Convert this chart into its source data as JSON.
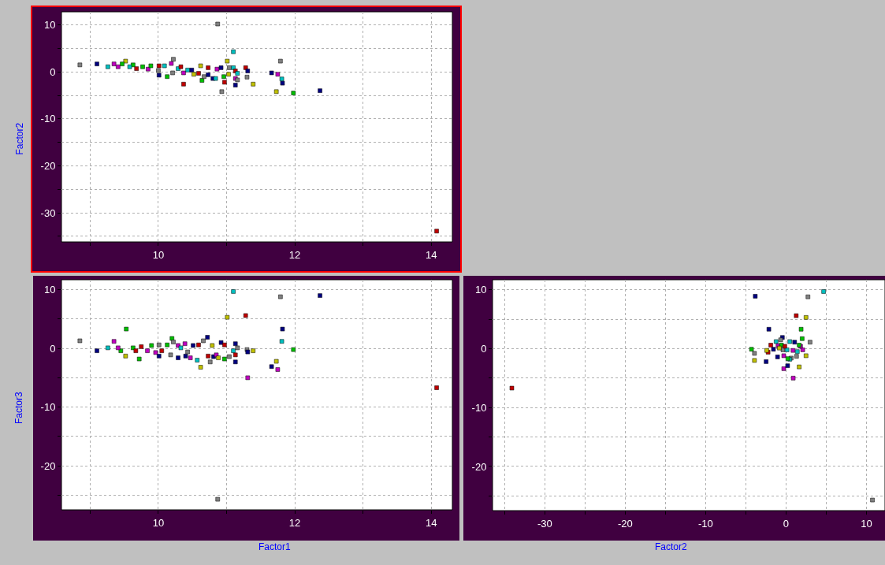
{
  "chart_data": [
    {
      "type": "scatter",
      "ylabel": "Factor2",
      "marker": "square",
      "grid": true,
      "xlim": [
        8.58,
        14.31
      ],
      "xticks": [
        {
          "value": 9,
          "label": null
        },
        10,
        {
          "value": 11,
          "label": null
        },
        12,
        {
          "value": 13,
          "label": null
        },
        14
      ],
      "ylim": [
        -36.2,
        12.8
      ],
      "yticks": [
        10,
        {
          "value": 5,
          "label": null
        },
        0,
        {
          "value": -5,
          "label": null
        },
        -10,
        {
          "value": -15,
          "label": null
        },
        -20,
        {
          "value": -25,
          "label": null
        },
        -30,
        {
          "value": -35,
          "label": null
        }
      ],
      "x": [
        8.85,
        9.1,
        9.26,
        9.35,
        9.41,
        9.52,
        9.47,
        9.63,
        9.58,
        9.68,
        9.77,
        9.85,
        9.89,
        10.01,
        10.0,
        10.01,
        10.09,
        10.13,
        10.19,
        10.22,
        10.21,
        10.29,
        10.33,
        10.37,
        10.37,
        10.43,
        10.49,
        10.52,
        10.62,
        10.59,
        10.64,
        10.67,
        10.73,
        10.73,
        10.86,
        10.8,
        10.84,
        10.87,
        10.92,
        10.93,
        10.97,
        10.96,
        11.01,
        11.03,
        11.04,
        11.1,
        11.1,
        11.13,
        11.13,
        11.13,
        11.16,
        11.16,
        11.28,
        11.31,
        11.3,
        11.39,
        11.66,
        11.75,
        11.79,
        11.81,
        11.82,
        11.73,
        11.98,
        12.37,
        14.08
      ],
      "values": [
        1.5,
        1.7,
        1.1,
        1.7,
        1.1,
        2.3,
        1.7,
        1.5,
        1.1,
        0.7,
        1.1,
        0.6,
        1.3,
        -0.7,
        0.3,
        1.3,
        1.3,
        -1.0,
        1.8,
        2.7,
        -0.2,
        0.7,
        1.1,
        -2.6,
        -0.2,
        0.4,
        0.4,
        -0.5,
        1.3,
        -0.3,
        -1.8,
        -1.0,
        0.9,
        -0.6,
        0.6,
        -1.4,
        -1.4,
        10.2,
        0.9,
        -4.2,
        -2.2,
        -1.0,
        2.3,
        -0.5,
        0.9,
        4.3,
        0.9,
        0.2,
        -1.4,
        -2.8,
        -0.3,
        -1.7,
        0.9,
        0.2,
        -1.1,
        -2.6,
        -0.2,
        -0.5,
        2.3,
        -1.5,
        -2.4,
        -4.2,
        -4.5,
        -4.0,
        -33.9
      ],
      "colors": [
        "#808080",
        "#000080",
        "#00c0c0",
        "#c000c0",
        "#c000c0",
        "#c0c000",
        "#00c000",
        "#00c000",
        "#00c0c0",
        "#c00000",
        "#00c000",
        "#c000c0",
        "#00c000",
        "#000080",
        "#808080",
        "#c00000",
        "#00c0c0",
        "#00c000",
        "#c000c0",
        "#808080",
        "#808080",
        "#00c0c0",
        "#c00000",
        "#c00000",
        "#c000c0",
        "#00c0c0",
        "#000080",
        "#c0c000",
        "#c0c000",
        "#c00000",
        "#00c000",
        "#808080",
        "#c00000",
        "#000080",
        "#c000c0",
        "#000080",
        "#00c0c0",
        "#808080",
        "#000080",
        "#808080",
        "#c00000",
        "#00c000",
        "#c0c000",
        "#c0c000",
        "#808080",
        "#00c0c0",
        "#00c0c0",
        "#c00000",
        "#c000c0",
        "#000080",
        "#00c0c0",
        "#808080",
        "#c00000",
        "#000080",
        "#808080",
        "#c0c000",
        "#000080",
        "#c000c0",
        "#808080",
        "#00c0c0",
        "#000080",
        "#c0c000",
        "#00c000",
        "#000080",
        "#c00000"
      ]
    },
    {
      "type": "scatter",
      "xlabel": "Factor1",
      "ylabel": "Factor3",
      "marker": "square",
      "grid": true,
      "xlim": [
        8.58,
        14.31
      ],
      "xticks": [
        {
          "value": 9,
          "label": null
        },
        10,
        {
          "value": 11,
          "label": null
        },
        12,
        {
          "value": 13,
          "label": null
        },
        14
      ],
      "ylim": [
        -27.5,
        11.7
      ],
      "yticks": [
        10,
        {
          "value": 5,
          "label": null
        },
        0,
        {
          "value": -5,
          "label": null
        },
        -10,
        {
          "value": -15,
          "label": null
        },
        -20,
        {
          "value": -25,
          "label": null
        }
      ],
      "x": [
        8.85,
        9.1,
        9.26,
        9.35,
        9.53,
        9.52,
        9.45,
        9.41,
        9.63,
        9.67,
        9.72,
        9.75,
        9.84,
        9.9,
        9.96,
        10.01,
        10.01,
        10.05,
        10.13,
        10.18,
        10.2,
        10.22,
        10.29,
        10.29,
        10.33,
        10.39,
        10.4,
        10.43,
        10.47,
        10.51,
        10.57,
        10.59,
        10.62,
        10.66,
        10.72,
        10.73,
        10.79,
        10.81,
        10.76,
        10.85,
        10.88,
        10.92,
        10.87,
        10.97,
        10.97,
        11.01,
        11.04,
        11.1,
        11.1,
        11.13,
        11.13,
        11.13,
        11.16,
        11.28,
        11.3,
        11.31,
        11.31,
        11.39,
        11.66,
        11.75,
        11.73,
        11.79,
        11.81,
        11.82,
        11.98,
        12.37,
        14.08
      ],
      "values": [
        1.3,
        -0.4,
        0.1,
        1.2,
        3.3,
        -1.3,
        -0.4,
        0.1,
        0.1,
        -0.4,
        -1.8,
        0.3,
        -0.4,
        0.5,
        -0.7,
        -1.3,
        0.6,
        -0.4,
        0.6,
        -1.1,
        1.7,
        1.1,
        0.5,
        -1.6,
        0.1,
        0.8,
        -1.3,
        -0.6,
        -1.6,
        0.5,
        -2.0,
        0.6,
        -3.2,
        1.3,
        1.9,
        -1.3,
        0.5,
        -1.4,
        -2.3,
        -1.1,
        -1.6,
        1.0,
        -25.7,
        0.6,
        -1.8,
        5.3,
        -1.4,
        9.7,
        -0.4,
        0.8,
        -1.1,
        -2.3,
        0.1,
        5.6,
        -0.2,
        -0.6,
        -5.0,
        -0.4,
        -3.1,
        -3.6,
        -2.2,
        8.8,
        1.2,
        3.3,
        -0.2,
        9.0,
        -6.7
      ],
      "colors": [
        "#808080",
        "#000080",
        "#00c0c0",
        "#c000c0",
        "#00c000",
        "#c0c000",
        "#00c000",
        "#c000c0",
        "#00c000",
        "#c00000",
        "#00c000",
        "#c00000",
        "#c000c0",
        "#00c000",
        "#c000c0",
        "#000080",
        "#808080",
        "#c00000",
        "#00c000",
        "#808080",
        "#00c000",
        "#808080",
        "#c000c0",
        "#000080",
        "#00c0c0",
        "#c000c0",
        "#000080",
        "#808080",
        "#c000c0",
        "#000080",
        "#00c0c0",
        "#c00000",
        "#c0c000",
        "#808080",
        "#000080",
        "#c00000",
        "#c0c000",
        "#000080",
        "#808080",
        "#c000c0",
        "#c0c000",
        "#000080",
        "#808080",
        "#c00000",
        "#00c000",
        "#c0c000",
        "#808080",
        "#00c0c0",
        "#00c0c0",
        "#000080",
        "#c00000",
        "#000080",
        "#808080",
        "#c00000",
        "#808080",
        "#000080",
        "#c000c0",
        "#c0c000",
        "#000080",
        "#c000c0",
        "#c0c000",
        "#808080",
        "#00c0c0",
        "#000080",
        "#00c000",
        "#000080",
        "#c00000"
      ]
    },
    {
      "type": "scatter",
      "xlabel": "Factor2",
      "marker": "square",
      "grid": true,
      "xlim": [
        -36.5,
        12.3
      ],
      "xticks": [
        {
          "value": -35,
          "label": null
        },
        -30,
        {
          "value": -25,
          "label": null
        },
        -20,
        {
          "value": -15,
          "label": null
        },
        -10,
        {
          "value": -5,
          "label": null
        },
        0,
        {
          "value": 5,
          "label": null
        },
        10
      ],
      "ylim": [
        -27.5,
        11.7
      ],
      "yticks": [
        10,
        {
          "value": 5,
          "label": null
        },
        0,
        {
          "value": -5,
          "label": null
        },
        -10,
        {
          "value": -15,
          "label": null
        },
        -20,
        {
          "value": -25,
          "label": null
        }
      ],
      "x": [
        -34.1,
        10.74,
        -3.83,
        2.72,
        4.67,
        1.26,
        2.48,
        -2.14,
        1.87,
        -0.46,
        2.0,
        2.98,
        -1.24,
        -1.9,
        -4.3,
        -3.93,
        -3.93,
        -2.24,
        -2.41,
        -2.48,
        -1.06,
        -0.29,
        0.19,
        0.89,
        1.63,
        2.48,
        2.07,
        0.46,
        1.06,
        -0.07,
        -1.0,
        -0.67,
        -0.57,
        0.63,
        1.47,
        1.8,
        1.63,
        0.96,
        0.63,
        0.46,
        0.22,
        -0.29,
        -0.39,
        -1.57,
        0.12,
        0.86,
        1.3,
        1.4,
        -0.16,
        -0.84
      ],
      "values": [
        -6.7,
        -25.7,
        8.9,
        8.8,
        9.7,
        5.6,
        5.3,
        3.3,
        3.3,
        1.9,
        1.7,
        1.1,
        1.2,
        0.6,
        -0.1,
        -0.8,
        -2.0,
        -0.6,
        -0.3,
        -2.2,
        -1.4,
        -3.4,
        -2.9,
        -5.0,
        -3.1,
        -1.2,
        -0.2,
        1.2,
        1.1,
        null,
        0.5,
        1.5,
        0.6,
        null,
        null,
        0.4,
        0.6,
        null,
        -1.6,
        -1.8,
        -1.7,
        -1.2,
        -0.2,
        -0.1,
        -0.2,
        -0.3,
        -1.3,
        -0.5,
        0.4,
        0.1
      ],
      "colors": [
        "#c00000",
        "#808080",
        "#000080",
        "#808080",
        "#00c0c0",
        "#c00000",
        "#c0c000",
        "#000080",
        "#00c000",
        "#000080",
        "#00c000",
        "#808080",
        "#00c0c0",
        "#c00000",
        "#00c000",
        "#808080",
        "#c0c000",
        "#c00000",
        "#c0c000",
        "#000080",
        "#000080",
        "#c000c0",
        "#000080",
        "#c000c0",
        "#c0c000",
        "#c0c000",
        "#c000c0",
        "#00c0c0",
        "#000080",
        "#c00000",
        "#c000c0",
        "#808080",
        "#00c000",
        "#00c0c0",
        "#00c0c0",
        "#c000c0",
        "#00c000",
        "#808080",
        "#808080",
        "#00c0c0",
        "#00c000",
        "#c000c0",
        "#808080",
        "#000080",
        "#00c0c0",
        "#c000c0",
        "#808080",
        "#00c0c0",
        "#c00000",
        "#c0c000"
      ]
    }
  ]
}
